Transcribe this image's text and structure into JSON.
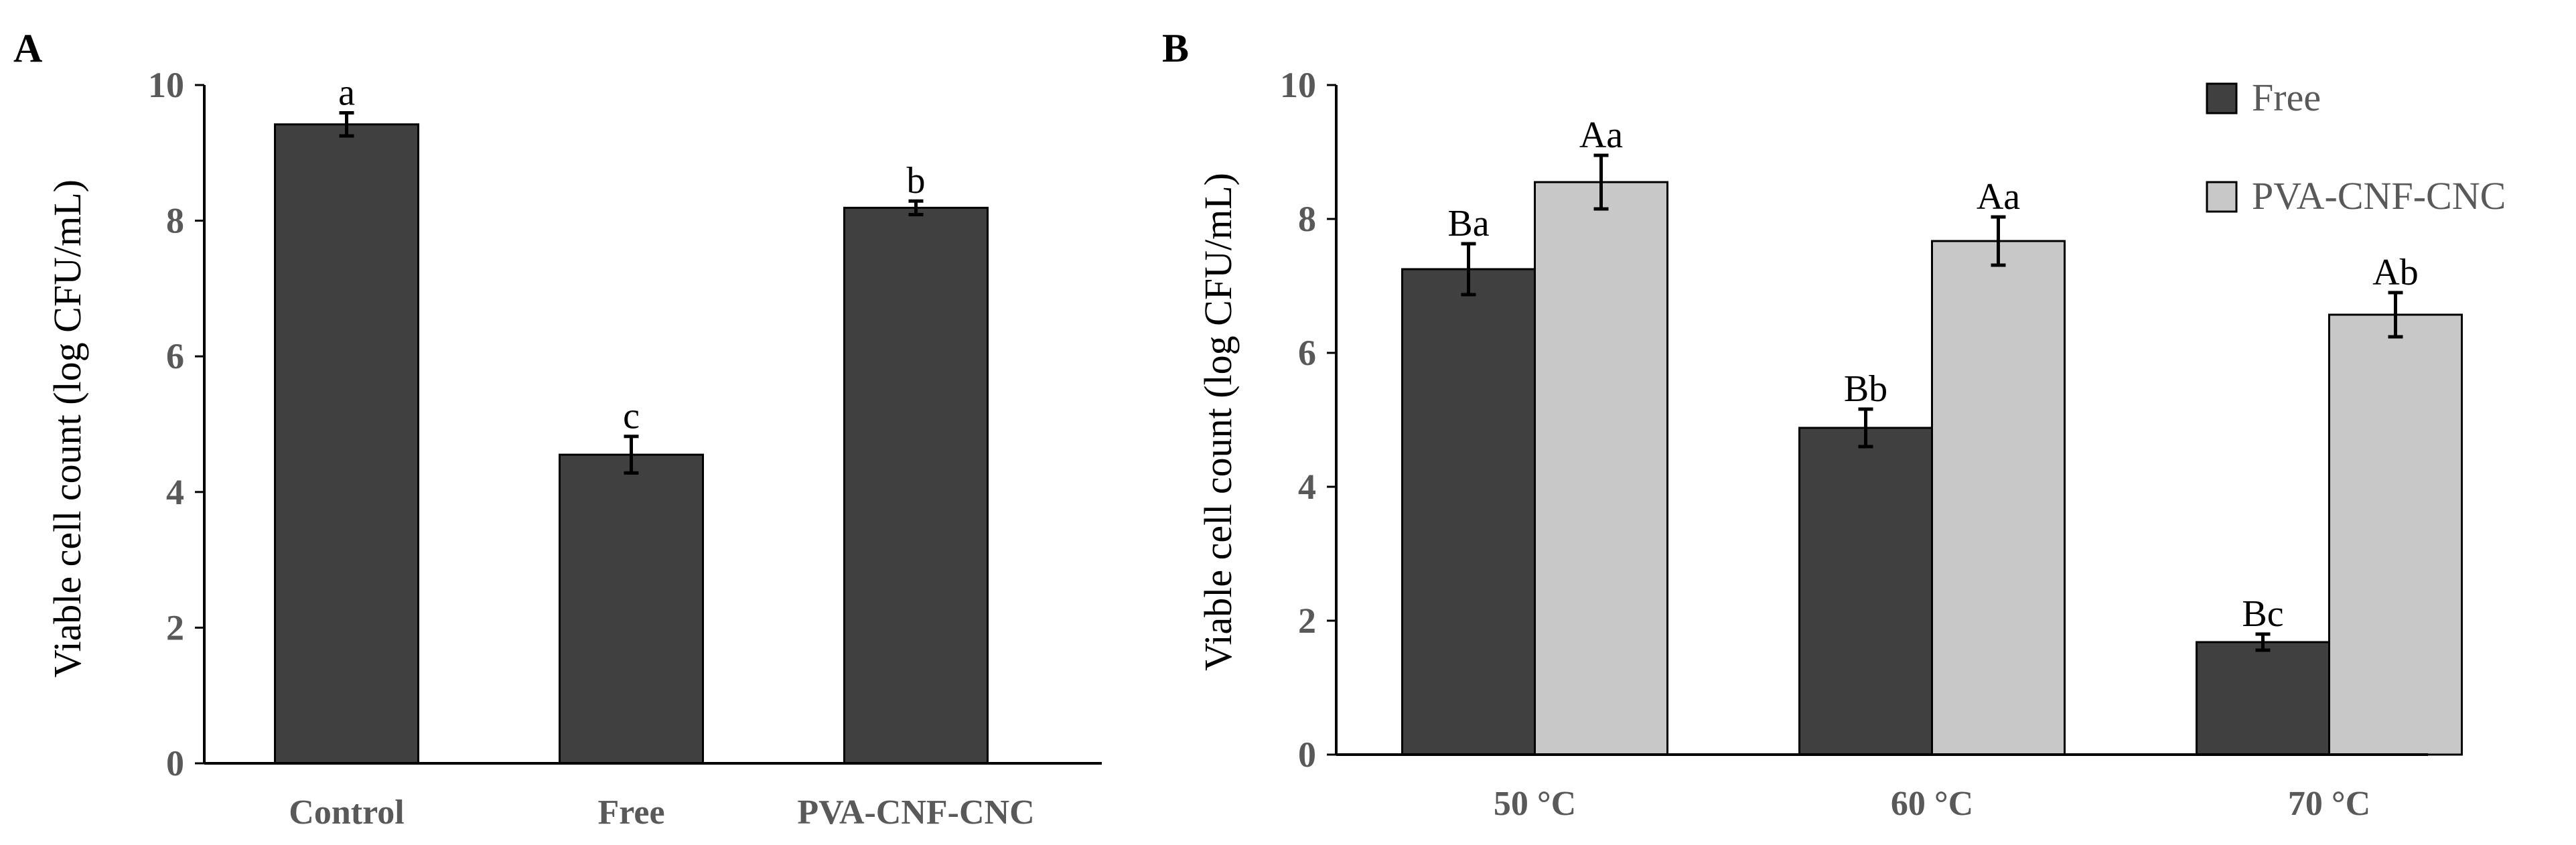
{
  "chart_data": [
    {
      "type": "bar",
      "panel": "A",
      "title": "",
      "xlabel": "",
      "ylabel": "Viable cell count (log CFU/mL)",
      "ylim": [
        0,
        10
      ],
      "yticks": [
        "0",
        "2",
        "4",
        "6",
        "8",
        "10"
      ],
      "categories": [
        "Control",
        "Free",
        "PVA-CNF-CNC"
      ],
      "series": [
        {
          "name": "Viable cell count",
          "color": "#404040",
          "values": [
            9.42,
            4.55,
            8.19
          ],
          "errors": [
            0.17,
            0.27,
            0.1
          ],
          "labels": [
            "a",
            "c",
            "b"
          ]
        }
      ],
      "grid": false,
      "legend": "none"
    },
    {
      "type": "bar",
      "panel": "B",
      "title": "",
      "xlabel": "",
      "ylabel": "Viable cell count (log CFU/mL)",
      "ylim": [
        0,
        10
      ],
      "yticks": [
        "0",
        "2",
        "4",
        "6",
        "8",
        "10"
      ],
      "categories": [
        "50 °C",
        "60 °C",
        "70 °C"
      ],
      "series": [
        {
          "name": "Free",
          "color": "#404040",
          "values": [
            7.25,
            4.88,
            1.68
          ],
          "errors": [
            0.38,
            0.28,
            0.12
          ],
          "labels": [
            "Ba",
            "Bb",
            "Bc"
          ]
        },
        {
          "name": "PVA-CNF-CNC",
          "color": "#c8c8c8",
          "values": [
            8.55,
            7.67,
            6.57
          ],
          "errors": [
            0.4,
            0.36,
            0.33
          ],
          "labels": [
            "Aa",
            "Aa",
            "Ab"
          ]
        }
      ],
      "grid": false,
      "legend": "top-right"
    }
  ]
}
